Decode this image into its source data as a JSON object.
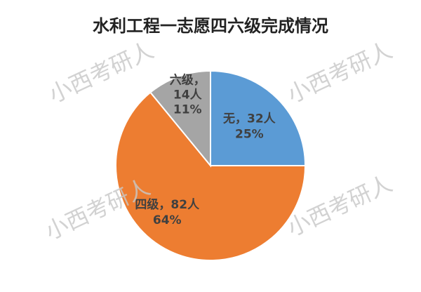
{
  "chart_data": {
    "type": "pie",
    "title": "水利工程一志愿四六级完成情况",
    "categories": [
      "无",
      "四级",
      "六级"
    ],
    "values": [
      32,
      82,
      14
    ],
    "value_labels": [
      "无，32人",
      "四级，82人",
      "六级，14人"
    ],
    "percentages": [
      25,
      64,
      11
    ],
    "percentage_labels": [
      "25%",
      "64%",
      "11%"
    ],
    "colors": [
      "#5b9bd5",
      "#ed7d31",
      "#a5a5a5"
    ],
    "watermark": "小西考研人"
  }
}
